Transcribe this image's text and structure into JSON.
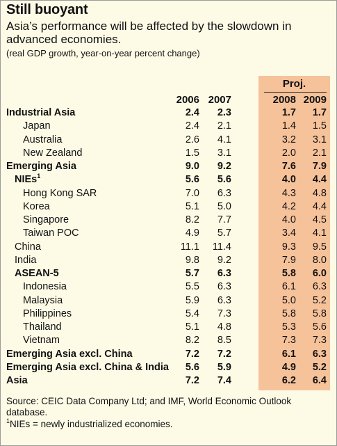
{
  "title": "Still buoyant",
  "subtitle": "Asia’s performance will be affected by the slowdown in advanced economies.",
  "units": "(real GDP growth, year-on-year percent change)",
  "proj_label": "Proj.",
  "years": [
    "2006",
    "2007",
    "2008",
    "2009"
  ],
  "rows": [
    {
      "label": "Industrial Asia",
      "values": [
        "2.4",
        "2.3",
        "1.7",
        "1.7"
      ]
    },
    {
      "label": "Japan",
      "values": [
        "2.4",
        "2.1",
        "1.4",
        "1.5"
      ]
    },
    {
      "label": "Australia",
      "values": [
        "2.6",
        "4.1",
        "3.2",
        "3.1"
      ]
    },
    {
      "label": "New Zealand",
      "values": [
        "1.5",
        "3.1",
        "2.0",
        "2.1"
      ]
    },
    {
      "label": "Emerging Asia",
      "values": [
        "9.0",
        "9.2",
        "7.6",
        "7.9"
      ]
    },
    {
      "label": "NIEs",
      "sup": "1",
      "values": [
        "5.6",
        "5.6",
        "4.0",
        "4.4"
      ]
    },
    {
      "label": "Hong Kong SAR",
      "values": [
        "7.0",
        "6.3",
        "4.3",
        "4.8"
      ]
    },
    {
      "label": "Korea",
      "values": [
        "5.1",
        "5.0",
        "4.2",
        "4.4"
      ]
    },
    {
      "label": "Singapore",
      "values": [
        "8.2",
        "7.7",
        "4.0",
        "4.5"
      ]
    },
    {
      "label": "Taiwan POC",
      "values": [
        "4.9",
        "5.7",
        "3.4",
        "4.1"
      ]
    },
    {
      "label": "China",
      "values": [
        "11.1",
        "11.4",
        "9.3",
        "9.5"
      ]
    },
    {
      "label": "India",
      "values": [
        "9.8",
        "9.2",
        "7.9",
        "8.0"
      ]
    },
    {
      "label": "ASEAN-5",
      "values": [
        "5.7",
        "6.3",
        "5.8",
        "6.0"
      ]
    },
    {
      "label": "Indonesia",
      "values": [
        "5.5",
        "6.3",
        "6.1",
        "6.3"
      ]
    },
    {
      "label": "Malaysia",
      "values": [
        "5.9",
        "6.3",
        "5.0",
        "5.2"
      ]
    },
    {
      "label": "Philippines",
      "values": [
        "5.4",
        "7.3",
        "5.8",
        "5.8"
      ]
    },
    {
      "label": "Thailand",
      "values": [
        "5.1",
        "4.8",
        "5.3",
        "5.6"
      ]
    },
    {
      "label": "Vietnam",
      "values": [
        "8.2",
        "8.5",
        "7.3",
        "7.3"
      ]
    },
    {
      "label": "Emerging Asia excl. China",
      "values": [
        "7.2",
        "7.2",
        "6.1",
        "6.3"
      ]
    },
    {
      "label": "Emerging Asia excl. China & India",
      "values": [
        "5.6",
        "5.9",
        "4.9",
        "5.2"
      ]
    },
    {
      "label": "Asia",
      "values": [
        "7.2",
        "7.4",
        "6.2",
        "6.4"
      ]
    }
  ],
  "source": "Source: CEIC Data Company Ltd; and IMF, World Economic Outlook database.",
  "footnote_sup": "1",
  "footnote_text": "NIEs = newly industrialized economies.",
  "colors": {
    "projection_band": "#f6c29a",
    "background": "#fdfbe6"
  }
}
